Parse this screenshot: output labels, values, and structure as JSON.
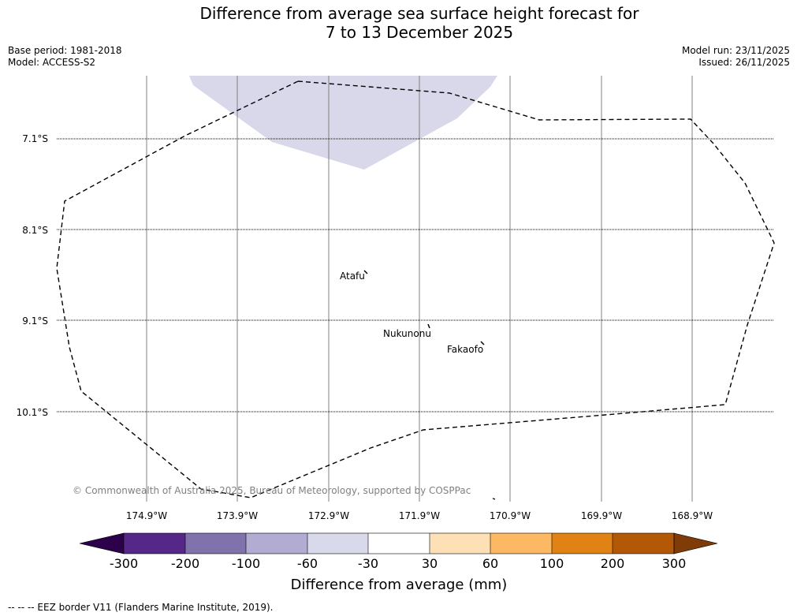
{
  "title_line1": "Difference from average sea surface height forecast for",
  "title_line2": "7 to 13 December 2025",
  "base_period": "Base period: 1981-2018",
  "model": "Model: ACCESS-S2",
  "model_run": "Model run: 23/11/2025",
  "issued": "Issued: 26/11/2025",
  "map": {
    "lat_labels": [
      "7.1°S",
      "8.1°S",
      "9.1°S",
      "10.1°S"
    ],
    "lon_labels": [
      "174.9°W",
      "173.9°W",
      "172.9°W",
      "171.9°W",
      "170.9°W",
      "169.9°W",
      "168.9°W"
    ],
    "places": [
      "Atafu",
      "Nukunonu",
      "Fakaofo"
    ],
    "copyright": "© Commonwealth of Australia 2025, Bureau of Meteorology, supported by COSPPac",
    "anomaly_region_category": "-60 to -30 mm",
    "colors": {
      "anomaly_fill": "#d8d8ea",
      "eez_line": "#000000",
      "gridline": "#808080"
    }
  },
  "colorbar": {
    "ticks": [
      "-300",
      "-200",
      "-100",
      "-60",
      "-30",
      "30",
      "60",
      "100",
      "200",
      "300"
    ],
    "colors": [
      "#2d004b",
      "#542788",
      "#8073ac",
      "#b2abd2",
      "#d8daeb",
      "#ffffff",
      "#fee0b6",
      "#fdb863",
      "#e08214",
      "#b35806",
      "#7f3b08"
    ],
    "title": "Difference from average (mm)"
  },
  "footer": "--  --  -- EEZ border V11 (Flanders Marine Institute, 2019)."
}
